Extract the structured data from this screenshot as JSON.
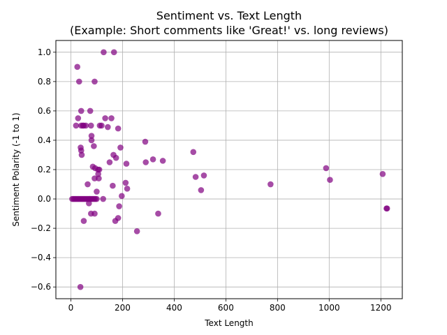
{
  "chart_data": {
    "type": "scatter",
    "title": "Sentiment vs. Text Length",
    "subtitle": "(Example: Short comments like 'Great!' vs. long reviews)",
    "xlabel": "Text Length",
    "ylabel": "Sentiment Polarity (-1 to 1)",
    "xlim": [
      -58,
      1283
    ],
    "ylim": [
      -0.68,
      1.08
    ],
    "xticks": [
      0,
      200,
      400,
      600,
      800,
      1000,
      1200
    ],
    "yticks": [
      -0.6,
      -0.4,
      -0.2,
      0.0,
      0.2,
      0.4,
      0.6,
      0.8,
      1.0
    ],
    "xtick_labels": [
      "0",
      "200",
      "400",
      "600",
      "800",
      "1000",
      "1200"
    ],
    "ytick_labels": [
      "−0.6",
      "−0.4",
      "−0.2",
      "0.0",
      "0.2",
      "0.4",
      "0.6",
      "0.8",
      "1.0"
    ],
    "grid": true,
    "marker_color": "#800080",
    "marker_opacity": 0.7,
    "points": [
      {
        "x": 25,
        "y": 0.9
      },
      {
        "x": 127,
        "y": 1.0
      },
      {
        "x": 167,
        "y": 1.0
      },
      {
        "x": 32,
        "y": 0.8
      },
      {
        "x": 92,
        "y": 0.8
      },
      {
        "x": 40,
        "y": 0.6
      },
      {
        "x": 75,
        "y": 0.6
      },
      {
        "x": 28,
        "y": 0.55
      },
      {
        "x": 133,
        "y": 0.55
      },
      {
        "x": 157,
        "y": 0.55
      },
      {
        "x": 20,
        "y": 0.5
      },
      {
        "x": 40,
        "y": 0.5
      },
      {
        "x": 46,
        "y": 0.5
      },
      {
        "x": 50,
        "y": 0.5
      },
      {
        "x": 58,
        "y": 0.5
      },
      {
        "x": 78,
        "y": 0.5
      },
      {
        "x": 112,
        "y": 0.5
      },
      {
        "x": 119,
        "y": 0.5
      },
      {
        "x": 143,
        "y": 0.49
      },
      {
        "x": 183,
        "y": 0.48
      },
      {
        "x": 80,
        "y": 0.43
      },
      {
        "x": 80,
        "y": 0.4
      },
      {
        "x": 288,
        "y": 0.39
      },
      {
        "x": 89,
        "y": 0.36
      },
      {
        "x": 38,
        "y": 0.35
      },
      {
        "x": 40,
        "y": 0.33
      },
      {
        "x": 192,
        "y": 0.35
      },
      {
        "x": 474,
        "y": 0.32
      },
      {
        "x": 42,
        "y": 0.3
      },
      {
        "x": 165,
        "y": 0.3
      },
      {
        "x": 175,
        "y": 0.28
      },
      {
        "x": 318,
        "y": 0.27
      },
      {
        "x": 356,
        "y": 0.26
      },
      {
        "x": 150,
        "y": 0.25
      },
      {
        "x": 290,
        "y": 0.25
      },
      {
        "x": 215,
        "y": 0.24
      },
      {
        "x": 85,
        "y": 0.22
      },
      {
        "x": 94,
        "y": 0.21
      },
      {
        "x": 988,
        "y": 0.21
      },
      {
        "x": 105,
        "y": 0.2
      },
      {
        "x": 110,
        "y": 0.2
      },
      {
        "x": 106,
        "y": 0.17
      },
      {
        "x": 1207,
        "y": 0.17
      },
      {
        "x": 515,
        "y": 0.16
      },
      {
        "x": 483,
        "y": 0.15
      },
      {
        "x": 92,
        "y": 0.14
      },
      {
        "x": 108,
        "y": 0.14
      },
      {
        "x": 1003,
        "y": 0.13
      },
      {
        "x": 212,
        "y": 0.11
      },
      {
        "x": 65,
        "y": 0.1
      },
      {
        "x": 773,
        "y": 0.1
      },
      {
        "x": 162,
        "y": 0.09
      },
      {
        "x": 218,
        "y": 0.07
      },
      {
        "x": 504,
        "y": 0.06
      },
      {
        "x": 100,
        "y": 0.05
      },
      {
        "x": 197,
        "y": 0.02
      },
      {
        "x": 5,
        "y": 0.0
      },
      {
        "x": 10,
        "y": 0.0
      },
      {
        "x": 15,
        "y": 0.0
      },
      {
        "x": 20,
        "y": 0.0
      },
      {
        "x": 25,
        "y": 0.0
      },
      {
        "x": 30,
        "y": 0.0
      },
      {
        "x": 35,
        "y": 0.0
      },
      {
        "x": 40,
        "y": 0.0
      },
      {
        "x": 45,
        "y": 0.0
      },
      {
        "x": 50,
        "y": 0.0
      },
      {
        "x": 55,
        "y": 0.0
      },
      {
        "x": 60,
        "y": 0.0
      },
      {
        "x": 65,
        "y": 0.0
      },
      {
        "x": 70,
        "y": 0.0
      },
      {
        "x": 75,
        "y": 0.0
      },
      {
        "x": 80,
        "y": 0.0
      },
      {
        "x": 85,
        "y": 0.0
      },
      {
        "x": 90,
        "y": 0.0
      },
      {
        "x": 95,
        "y": 0.0
      },
      {
        "x": 100,
        "y": 0.0
      },
      {
        "x": 125,
        "y": 0.0
      },
      {
        "x": 70,
        "y": -0.03
      },
      {
        "x": 187,
        "y": -0.05
      },
      {
        "x": 1222,
        "y": -0.065
      },
      {
        "x": 1224,
        "y": -0.065
      },
      {
        "x": 78,
        "y": -0.1
      },
      {
        "x": 92,
        "y": -0.1
      },
      {
        "x": 338,
        "y": -0.1
      },
      {
        "x": 183,
        "y": -0.13
      },
      {
        "x": 50,
        "y": -0.15
      },
      {
        "x": 172,
        "y": -0.15
      },
      {
        "x": 256,
        "y": -0.22
      },
      {
        "x": 37,
        "y": -0.6
      }
    ]
  }
}
